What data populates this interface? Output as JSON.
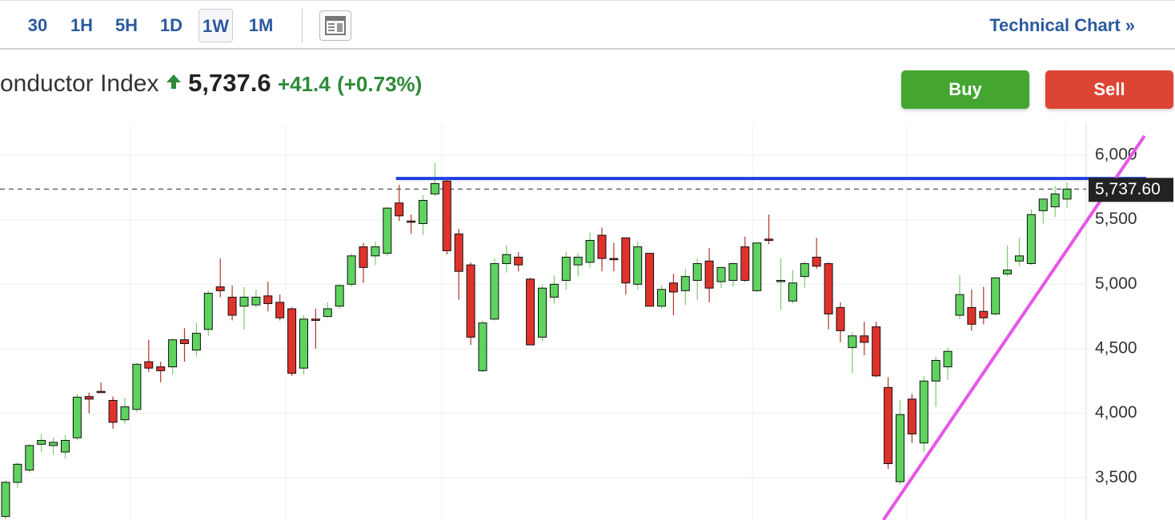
{
  "toolbar": {
    "intervals": [
      "30",
      "1H",
      "5H",
      "1D",
      "1W",
      "1M"
    ],
    "selected": "1W",
    "link": "Technical Chart »"
  },
  "quote": {
    "name": "onductor Index",
    "price": "5,737.6",
    "change": "+41.4",
    "change_percent": "(+0.73%)"
  },
  "buttons": {
    "buy": "Buy",
    "sell": "Sell"
  },
  "chart_data": {
    "type": "candlestick",
    "up_color": "#5fd35f",
    "down_color": "#e0322b",
    "ylim": [
      3173,
      6242
    ],
    "yticks": [
      {
        "value": 3500,
        "label": "3,500"
      },
      {
        "value": 4000,
        "label": "4,000"
      },
      {
        "value": 4500,
        "label": "4,500"
      },
      {
        "value": 5000,
        "label": "5,000"
      },
      {
        "value": 5500,
        "label": "5,500"
      },
      {
        "value": 6000,
        "label": "6,000"
      }
    ],
    "grid": true,
    "last_price": {
      "value": 5737.6,
      "label": "5,737.60"
    },
    "horizontal_line": {
      "value": 5820,
      "color": "#1f3fe0",
      "from_index": 33
    },
    "trend_line": {
      "x": [
        73.6,
        95.5
      ],
      "values": [
        3173,
        6150
      ],
      "color": "#e855e8"
    },
    "open": [
      3200,
      3465,
      3560,
      3760,
      3750,
      3700,
      3810,
      4130,
      4170,
      4100,
      3950,
      4030,
      4400,
      4360,
      4360,
      4570,
      4490,
      4650,
      4980,
      4900,
      4830,
      4840,
      4910,
      4860,
      4810,
      4350,
      4730,
      4750,
      4830,
      5000,
      5290,
      5220,
      5240,
      5630,
      5490,
      5470,
      5700,
      5800,
      5390,
      5150,
      4330,
      4730,
      5160,
      5210,
      5040,
      4590,
      4900,
      5030,
      5150,
      5170,
      5380,
      5200,
      5360,
      5000,
      5240,
      4830,
      5010,
      4950,
      5030,
      5180,
      5020,
      5030,
      5290,
      4950,
      5350,
      5020,
      4870,
      5060,
      5210,
      5160,
      4820,
      4510,
      4600,
      4670,
      4200,
      3470,
      4110,
      3770,
      4250,
      4360,
      4760,
      4820,
      4790,
      4770,
      5080,
      5180,
      5160,
      5570,
      5600,
      5660
    ],
    "high": [
      3480,
      3620,
      3760,
      3840,
      3810,
      3830,
      4150,
      4160,
      4240,
      4130,
      4120,
      4390,
      4570,
      4400,
      4570,
      4660,
      4700,
      4950,
      5200,
      4990,
      4980,
      4960,
      5020,
      4920,
      4820,
      4760,
      4810,
      4860,
      5000,
      5240,
      5320,
      5330,
      5600,
      5770,
      5540,
      5690,
      5940,
      5810,
      5430,
      5170,
      4720,
      5200,
      5300,
      5250,
      5050,
      5000,
      5070,
      5250,
      5240,
      5400,
      5440,
      5320,
      5360,
      5330,
      5240,
      4990,
      5080,
      5120,
      5200,
      5280,
      5130,
      5170,
      5370,
      5320,
      5540,
      5200,
      5110,
      5180,
      5360,
      5170,
      4860,
      4630,
      4710,
      4710,
      4280,
      4100,
      4150,
      4290,
      4440,
      4510,
      5070,
      4960,
      4980,
      5050,
      5300,
      5360,
      5580,
      5650,
      5760,
      5790
    ],
    "low": [
      3180,
      3420,
      3540,
      3700,
      3680,
      3650,
      3790,
      4000,
      4160,
      3880,
      3920,
      4010,
      4320,
      4240,
      4300,
      4400,
      4440,
      4600,
      4900,
      4720,
      4650,
      4820,
      4790,
      4720,
      4290,
      4300,
      4500,
      4740,
      4810,
      4980,
      5010,
      5150,
      5220,
      5490,
      5390,
      5380,
      5680,
      5230,
      4880,
      4530,
      4320,
      4720,
      5090,
      5100,
      4530,
      4560,
      4850,
      4960,
      5060,
      5130,
      5100,
      5100,
      4920,
      4960,
      4830,
      4810,
      4760,
      4840,
      4880,
      4860,
      4970,
      4980,
      5020,
      4940,
      5310,
      4800,
      4850,
      4970,
      5120,
      4650,
      4550,
      4310,
      4450,
      4280,
      3570,
      3450,
      3770,
      3700,
      4050,
      4260,
      4730,
      4640,
      4690,
      4760,
      5060,
      5140,
      5150,
      5470,
      5520,
      5590
    ],
    "close": [
      3465,
      3605,
      3750,
      3790,
      3775,
      3790,
      4125,
      4110,
      4160,
      3930,
      4050,
      4380,
      4350,
      4330,
      4570,
      4540,
      4620,
      4930,
      4950,
      4760,
      4900,
      4900,
      4850,
      4740,
      4310,
      4730,
      4720,
      4810,
      4990,
      5220,
      5130,
      5290,
      5590,
      5530,
      5480,
      5650,
      5780,
      5260,
      5100,
      4590,
      4700,
      5160,
      5230,
      5150,
      4530,
      4970,
      5000,
      5210,
      5210,
      5340,
      5200,
      5190,
      5010,
      5290,
      4830,
      4960,
      4940,
      5060,
      5160,
      4970,
      5130,
      5160,
      5030,
      5320,
      5340,
      5030,
      5010,
      5160,
      5140,
      4770,
      4640,
      4600,
      4550,
      4290,
      3610,
      3990,
      3840,
      4250,
      4410,
      4480,
      4920,
      4690,
      4740,
      5050,
      5110,
      5220,
      5540,
      5660,
      5700,
      5737.6
    ]
  }
}
